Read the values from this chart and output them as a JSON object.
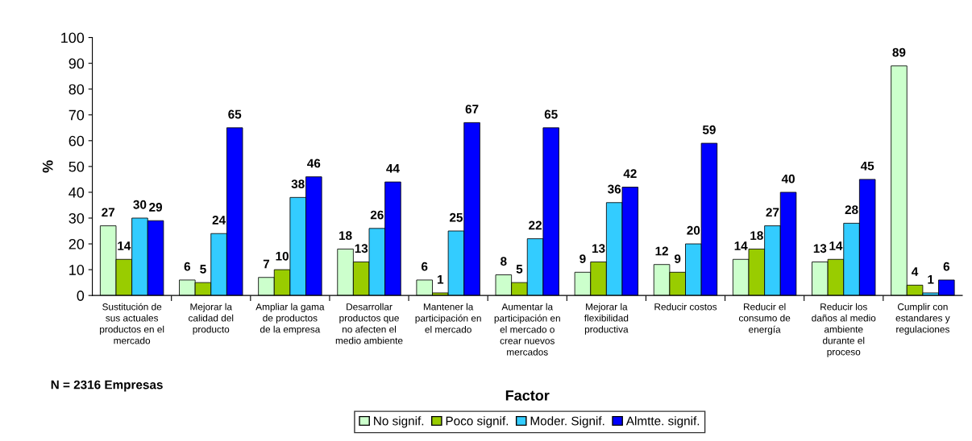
{
  "chart_data": {
    "type": "bar",
    "xlabel": "Factor",
    "ylabel": "%",
    "categories": [
      "Sustitución de\nsus actuales\nproductos en el\nmercado",
      "Mejorar la\ncalidad del\nproducto",
      "Ampliar la gama\nde productos\nde la empresa",
      "Desarrollar\nproductos que\nno afecten el\nmedio ambiente",
      "Mantener la\nparticipación en\nel mercado",
      "Aumentar la\nparticipación en\nel mercado o\ncrear nuevos\nmercados",
      "Mejorar la\nflexibilidad\nproductiva",
      "Reducir costos",
      "Reducir el\nconsumo de\nenergía",
      "Reducir los\ndaños al medio\nambiente\ndurante el\nproceso",
      "Cumplir con\nestandares y\nregulaciones"
    ],
    "series": [
      {
        "name": "No signif.",
        "color": "#ccffcc",
        "values": [
          27,
          6,
          7,
          18,
          6,
          8,
          9,
          12,
          14,
          13,
          89
        ]
      },
      {
        "name": "Poco signif.",
        "color": "#99cc00",
        "values": [
          14,
          5,
          10,
          13,
          1,
          5,
          13,
          9,
          18,
          14,
          4
        ]
      },
      {
        "name": "Moder. Signif.",
        "color": "#33ccff",
        "values": [
          30,
          24,
          38,
          26,
          25,
          22,
          36,
          20,
          27,
          28,
          1
        ]
      },
      {
        "name": "Almtte. signif.",
        "color": "#0000ff",
        "values": [
          29,
          65,
          46,
          44,
          67,
          65,
          42,
          59,
          40,
          45,
          6
        ]
      }
    ],
    "ylim": [
      0,
      100
    ],
    "yticks": [
      0,
      10,
      20,
      30,
      40,
      50,
      60,
      70,
      80,
      90,
      100
    ],
    "grid": false,
    "legend": "bottom",
    "data_labels": true,
    "annotations": [
      "N = 2316 Empresas"
    ]
  }
}
